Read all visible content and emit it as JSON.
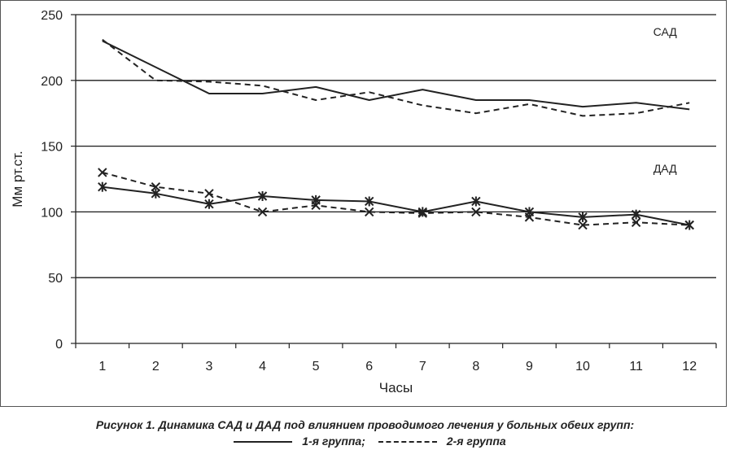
{
  "chart_data": {
    "type": "line",
    "ylabel": "Мм рт.ст.",
    "xlabel": "Часы",
    "categories": [
      "1",
      "2",
      "3",
      "4",
      "5",
      "6",
      "7",
      "8",
      "9",
      "10",
      "11",
      "12"
    ],
    "ylim": [
      0,
      250
    ],
    "yticks": [
      "0",
      "50",
      "100",
      "150",
      "200",
      "250"
    ],
    "grid": "horizontal",
    "annotations": [
      "САД",
      "ДАД"
    ],
    "series": [
      {
        "name": "САД 1-я группа",
        "style": "solid",
        "marker": "none",
        "values": [
          230,
          210,
          190,
          190,
          195,
          185,
          193,
          185,
          185,
          180,
          183,
          178
        ]
      },
      {
        "name": "САД 2-я группа",
        "style": "dashed",
        "marker": "none",
        "values": [
          231,
          200,
          199,
          196,
          185,
          191,
          181,
          175,
          182,
          173,
          175,
          183
        ]
      },
      {
        "name": "ДАД 1-я группа",
        "style": "solid",
        "marker": "asterisk",
        "values": [
          119,
          114,
          106,
          112,
          109,
          108,
          100,
          108,
          100,
          96,
          98,
          90
        ]
      },
      {
        "name": "ДАД 2-я группа",
        "style": "dashed",
        "marker": "x",
        "values": [
          130,
          119,
          114,
          100,
          105,
          100,
          99,
          100,
          96,
          90,
          92,
          90
        ]
      }
    ]
  },
  "caption": {
    "text": "Рисунок 1. Динамика САД и ДАД под влиянием проводимого лечения у больных обеих групп:",
    "legend_group1": "1-я группа;",
    "legend_group2": "2-я группа"
  },
  "colors": {
    "line": "#222222",
    "grid": "#1a1a1a",
    "background": "#ffffff"
  }
}
